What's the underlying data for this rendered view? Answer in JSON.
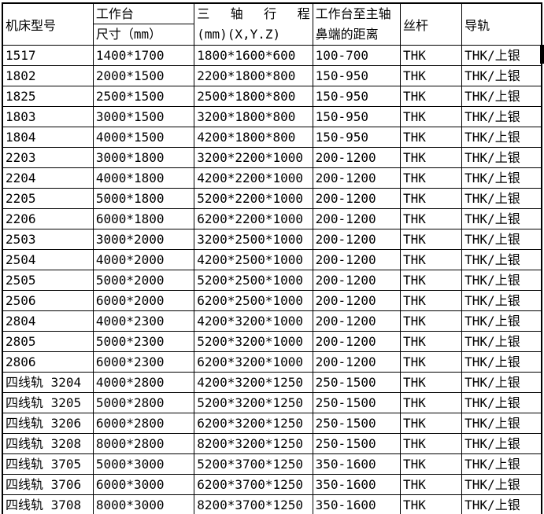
{
  "table": {
    "header": {
      "model": "机床型号",
      "worktable_line1": "工作台",
      "worktable_line2": "尺寸（mm）",
      "travel_line1": "三 轴 行 程",
      "travel_line2": "(mm)(X,Y.Z)",
      "distance_line1": "工作台至主轴",
      "distance_line2": "鼻端的距离",
      "screw": "丝杆",
      "rail": "导轨"
    },
    "rows": [
      [
        "1517",
        "1400*1700",
        "1800*1600*600",
        "100-700",
        "THK",
        "THK/上银"
      ],
      [
        "1802",
        "2000*1500",
        "2200*1800*800",
        "150-950",
        "THK",
        "THK/上银"
      ],
      [
        "1825",
        "2500*1500",
        "2500*1800*800",
        "150-950",
        "THK",
        "THK/上银"
      ],
      [
        "1803",
        "3000*1500",
        "3200*1800*800",
        "150-950",
        "THK",
        "THK/上银"
      ],
      [
        "1804",
        "4000*1500",
        "4200*1800*800",
        "150-950",
        "THK",
        "THK/上银"
      ],
      [
        "2203",
        "3000*1800",
        "3200*2200*1000",
        "200-1200",
        "THK",
        "THK/上银"
      ],
      [
        "2204",
        "4000*1800",
        "4200*2200*1000",
        "200-1200",
        "THK",
        "THK/上银"
      ],
      [
        "2205",
        "5000*1800",
        "5200*2200*1000",
        "200-1200",
        "THK",
        "THK/上银"
      ],
      [
        "2206",
        "6000*1800",
        "6200*2200*1000",
        "200-1200",
        "THK",
        "THK/上银"
      ],
      [
        "2503",
        "3000*2000",
        "3200*2500*1000",
        "200-1200",
        "THK",
        "THK/上银"
      ],
      [
        "2504",
        "4000*2000",
        "4200*2500*1000",
        "200-1200",
        "THK",
        "THK/上银"
      ],
      [
        "2505",
        "5000*2000",
        "5200*2500*1000",
        "200-1200",
        "THK",
        "THK/上银"
      ],
      [
        "2506",
        "6000*2000",
        "6200*2500*1000",
        "200-1200",
        "THK",
        "THK/上银"
      ],
      [
        "2804",
        "4000*2300",
        "4200*3200*1000",
        "200-1200",
        "THK",
        "THK/上银"
      ],
      [
        "2805",
        "5000*2300",
        "5200*3200*1000",
        "200-1200",
        "THK",
        "THK/上银"
      ],
      [
        "2806",
        "6000*2300",
        "6200*3200*1000",
        "200-1200",
        "THK",
        "THK/上银"
      ],
      [
        "四线轨 3204",
        "4000*2800",
        "4200*3200*1250",
        "250-1500",
        "THK",
        "THK/上银"
      ],
      [
        "四线轨 3205",
        "5000*2800",
        "5200*3200*1250",
        "250-1500",
        "THK",
        "THK/上银"
      ],
      [
        "四线轨 3206",
        "6000*2800",
        "6200*3200*1250",
        "250-1500",
        "THK",
        "THK/上银"
      ],
      [
        "四线轨 3208",
        "8000*2800",
        "8200*3200*1250",
        "250-1500",
        "THK",
        "THK/上银"
      ],
      [
        "四线轨 3705",
        "5000*3000",
        "5200*3700*1250",
        "350-1600",
        "THK",
        "THK/上银"
      ],
      [
        "四线轨 3706",
        "6000*3000",
        "6200*3700*1250",
        "350-1600",
        "THK",
        "THK/上银"
      ],
      [
        "四线轨 3708",
        "8000*3000",
        "8200*3700*1250",
        "350-1600",
        "THK",
        "THK/上银"
      ]
    ]
  },
  "colors": {
    "border": "#000000",
    "text": "#000000",
    "background": "#ffffff",
    "edge_marker": "#000000"
  }
}
